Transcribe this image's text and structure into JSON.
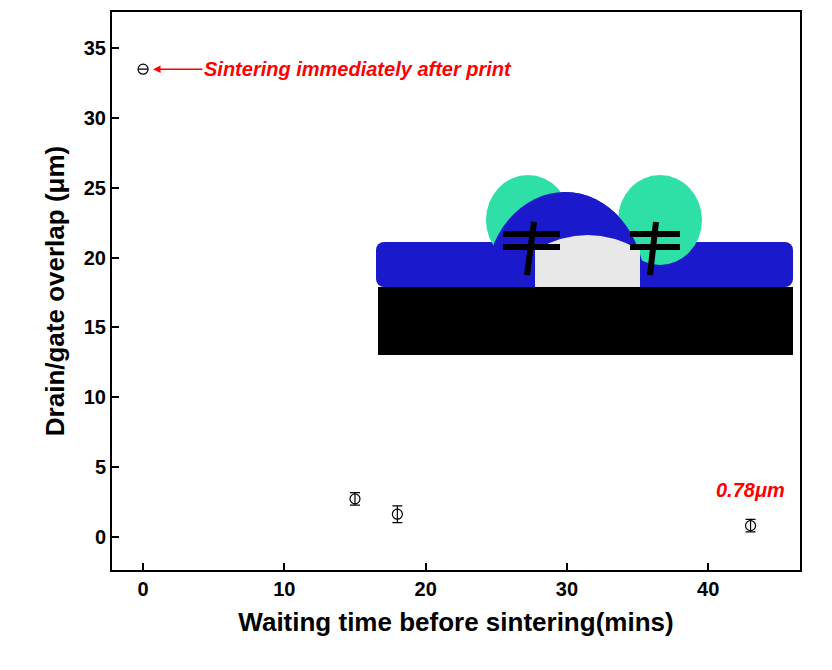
{
  "chart_data": {
    "type": "scatter",
    "x": [
      0,
      15,
      18,
      43
    ],
    "values": [
      33.5,
      2.7,
      1.6,
      0.78
    ],
    "errors": [
      0,
      0.45,
      0.6,
      0.45
    ],
    "marker": "circle-open",
    "color": "#000000",
    "xlabel": "Waiting time before sintering(mins)",
    "ylabel": "Drain/gate overlap (μm)",
    "xlim": [
      -2.2,
      46.5
    ],
    "ylim": [
      -2.4,
      37.6
    ],
    "xticks": [
      0,
      10,
      20,
      30,
      40
    ],
    "yticks": [
      0,
      5,
      10,
      15,
      20,
      25,
      30,
      35
    ],
    "grid": false,
    "annotations": [
      {
        "text": "Sintering immediately after print",
        "x": 4.2,
        "y": 33.5,
        "color": "#ff0000",
        "arrow": true
      },
      {
        "text": "0.78μm",
        "x": 43,
        "y": 3.3,
        "color": "#ff0000",
        "arrow": false
      }
    ]
  }
}
